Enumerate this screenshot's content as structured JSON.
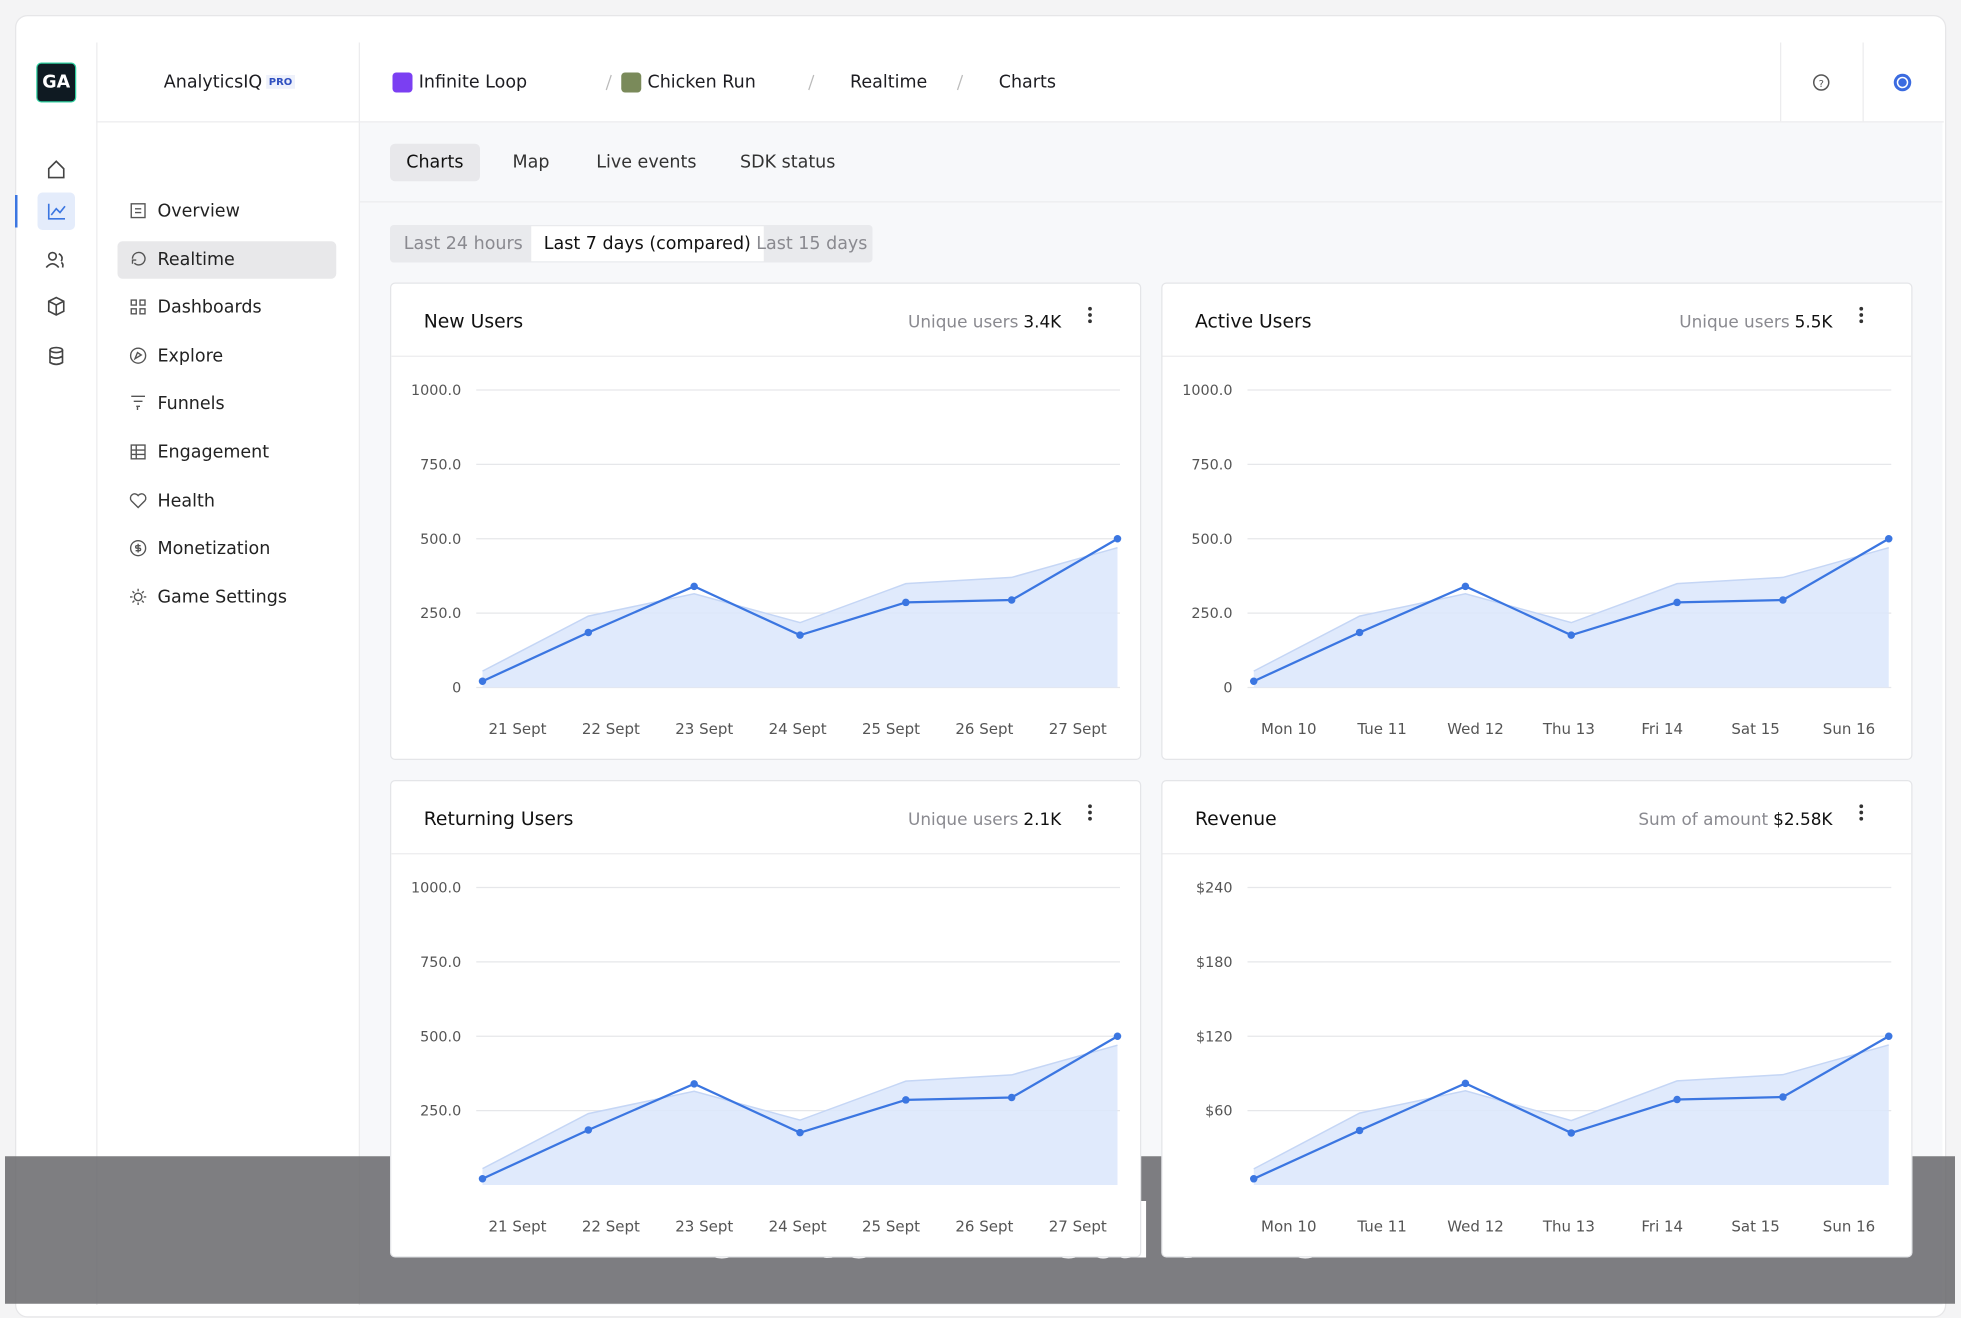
{
  "brand": {
    "logo": "GA",
    "name": "AnalyticsIQ",
    "badge": "PRO"
  },
  "breadcrumb": [
    "Infinite Loop",
    "Chicken Run",
    "Realtime",
    "Charts"
  ],
  "nav": [
    "Overview",
    "Realtime",
    "Dashboards",
    "Explore",
    "Funnels",
    "Engagement",
    "Health",
    "Monetization",
    "Game Settings"
  ],
  "tabs": [
    "Charts",
    "Map",
    "Live events",
    "SDK status"
  ],
  "ranges": [
    "Last 24 hours",
    "Last 7 days (compared)",
    "Last 15 days"
  ],
  "banner": "Monitor in real time",
  "chart_data": [
    {
      "type": "line",
      "title": "New Users",
      "metric_label": "Unique users",
      "metric_value": "3.4K",
      "categories": [
        "21 Sept",
        "22 Sept",
        "23 Sept",
        "24 Sept",
        "25 Sept",
        "26 Sept",
        "27 Sept"
      ],
      "ylim": [
        0,
        1000
      ],
      "yticks": [
        0,
        {
          "value": 250,
          "label": "250.0"
        },
        {
          "value": 500,
          "label": "500.0"
        },
        {
          "value": 750,
          "label": "750.0"
        },
        {
          "value": 1000,
          "label": "1000.0"
        }
      ],
      "series": [
        {
          "type": "area",
          "color": "#dbe6fb",
          "values": [
            55,
            240,
            315,
            218,
            349,
            370,
            470
          ]
        },
        {
          "type": "line",
          "color": "#3b76e1",
          "values": [
            21,
            185,
            340,
            176,
            286,
            294,
            500
          ]
        }
      ]
    },
    {
      "type": "line",
      "title": "Active Users",
      "metric_label": "Unique users",
      "metric_value": "5.5K",
      "categories": [
        "Mon 10",
        "Tue 11",
        "Wed 12",
        "Thu 13",
        "Fri 14",
        "Sat 15",
        "Sun 16"
      ],
      "ylim": [
        0,
        1000
      ],
      "yticks": [
        0,
        {
          "value": 250,
          "label": "250.0"
        },
        {
          "value": 500,
          "label": "500.0"
        },
        {
          "value": 750,
          "label": "750.0"
        },
        {
          "value": 1000,
          "label": "1000.0"
        }
      ],
      "series": [
        {
          "type": "area",
          "color": "#dbe6fb",
          "values": [
            55,
            240,
            315,
            218,
            349,
            370,
            470
          ]
        },
        {
          "type": "line",
          "color": "#3b76e1",
          "values": [
            21,
            185,
            340,
            176,
            286,
            294,
            500
          ]
        }
      ]
    },
    {
      "type": "line",
      "title": "Returning Users",
      "metric_label": "Unique users",
      "metric_value": "2.1K",
      "categories": [
        "21 Sept",
        "22 Sept",
        "23 Sept",
        "24 Sept",
        "25 Sept",
        "26 Sept",
        "27 Sept"
      ],
      "ylim": [
        0,
        1000
      ],
      "yticks": [
        {
          "value": 250,
          "label": "250.0"
        },
        {
          "value": 500,
          "label": "500.0"
        },
        {
          "value": 750,
          "label": "750.0"
        },
        {
          "value": 1000,
          "label": "1000.0"
        }
      ],
      "series": [
        {
          "type": "area",
          "color": "#dbe6fb",
          "values": [
            55,
            240,
            315,
            218,
            349,
            370,
            470
          ]
        },
        {
          "type": "line",
          "color": "#3b76e1",
          "values": [
            21,
            185,
            340,
            176,
            286,
            294,
            500
          ]
        }
      ]
    },
    {
      "type": "line",
      "title": "Revenue",
      "metric_label": "Sum of amount",
      "metric_value": "$2.58K",
      "categories": [
        "Mon 10",
        "Tue 11",
        "Wed 12",
        "Thu 13",
        "Fri 14",
        "Sat 15",
        "Sun 16"
      ],
      "ylim": [
        0,
        240
      ],
      "yticks": [
        {
          "value": 60,
          "label": "$60"
        },
        {
          "value": 120,
          "label": "$120"
        },
        {
          "value": 180,
          "label": "$180"
        },
        {
          "value": 240,
          "label": "$240"
        }
      ],
      "series": [
        {
          "type": "area",
          "color": "#dbe6fb",
          "values": [
            13,
            58,
            76,
            52,
            84,
            89,
            113
          ]
        },
        {
          "type": "line",
          "color": "#3b76e1",
          "values": [
            5,
            44,
            82,
            42,
            69,
            71,
            120
          ]
        }
      ]
    }
  ]
}
